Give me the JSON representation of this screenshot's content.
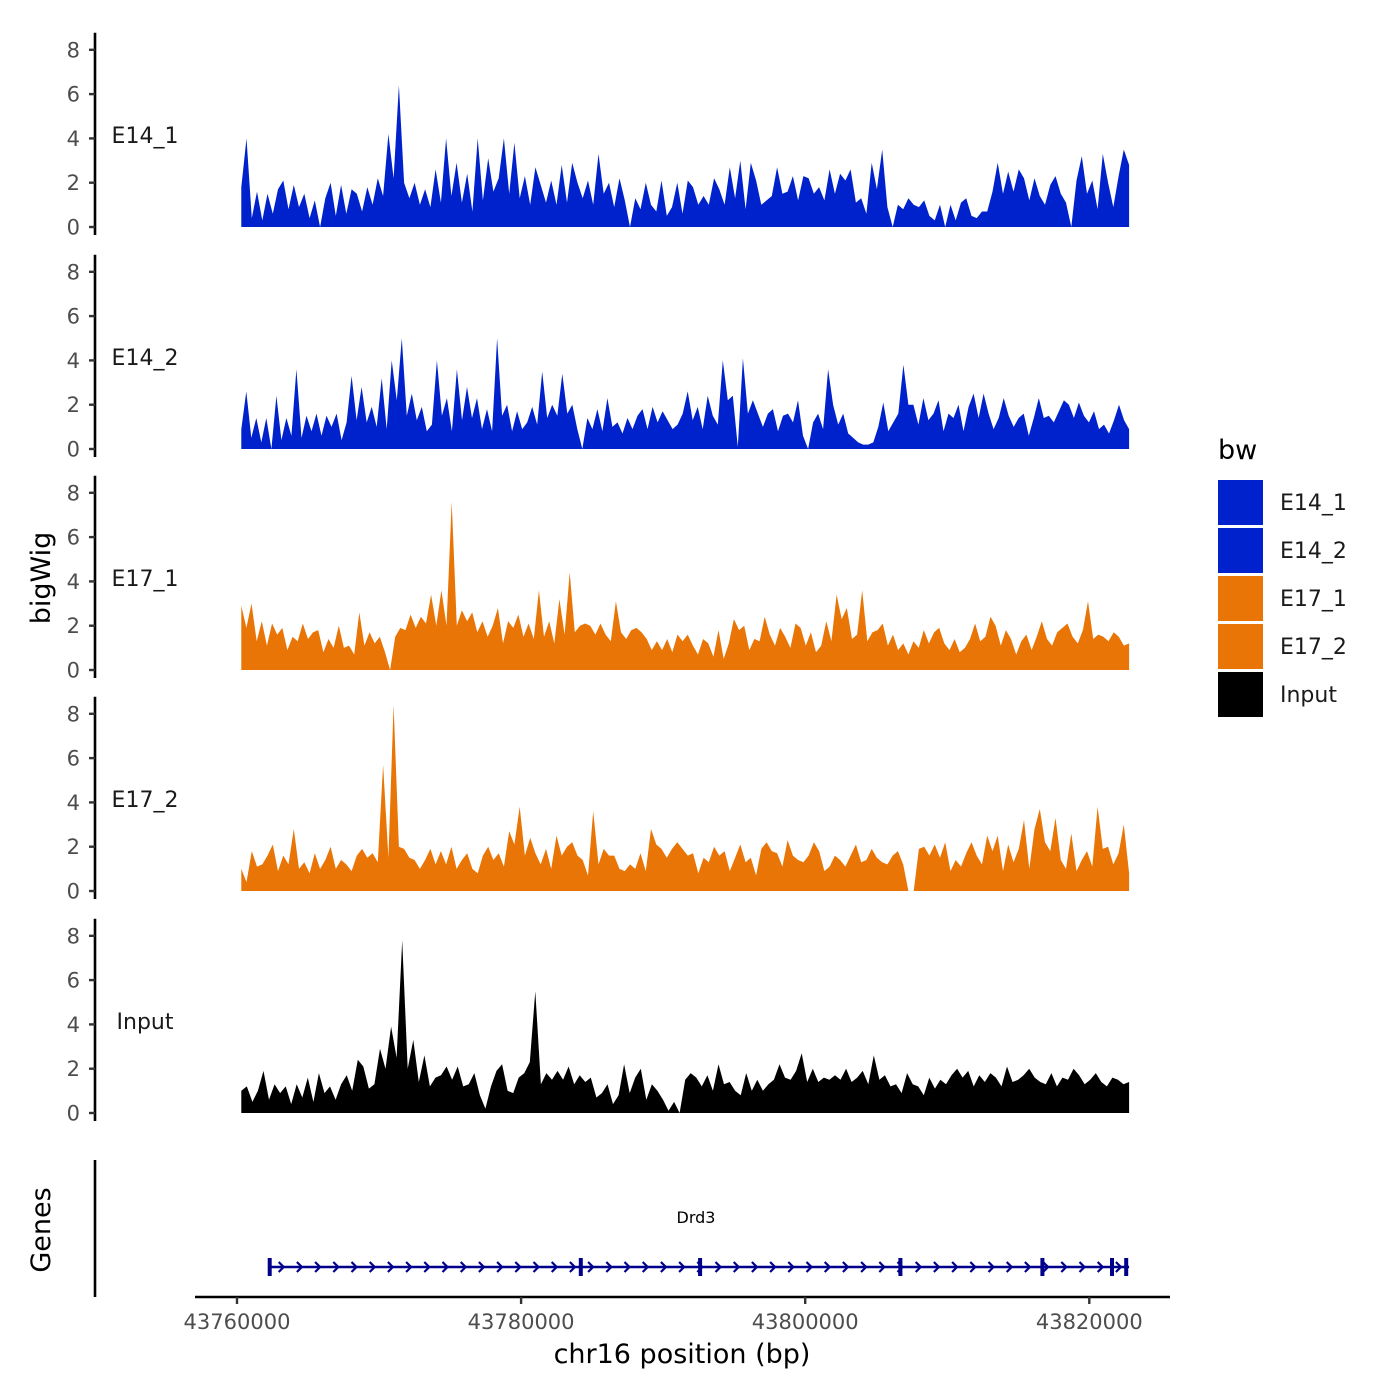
{
  "chart_data": {
    "type": "area",
    "title": "",
    "ylabel": "bigWig",
    "xlabel": "chr16 position (bp)",
    "ylim": [
      0,
      8.5
    ],
    "yticks": [
      "0",
      "2",
      "4",
      "6",
      "8"
    ],
    "xlim": [
      43760000,
      43823000
    ],
    "xticks": [
      43760000,
      43780000,
      43800000,
      43820000
    ],
    "xtick_labels": [
      "43760000",
      "43780000",
      "43800000",
      "43820000"
    ],
    "x_start": 43760300,
    "x_end": 43822800,
    "tracks": [
      {
        "name": "E14_1",
        "color": "#0022cc",
        "values": [
          1.8,
          4.0,
          0.4,
          1.6,
          0.3,
          1.5,
          0.6,
          1.7,
          2.1,
          0.8,
          1.9,
          0.9,
          1.5,
          0.4,
          1.2,
          0.0,
          1.3,
          2.0,
          0.5,
          1.9,
          0.6,
          1.7,
          1.5,
          0.7,
          1.8,
          1.0,
          2.2,
          1.4,
          4.2,
          2.2,
          6.4,
          2.0,
          1.3,
          2.0,
          1.0,
          1.7,
          0.9,
          2.6,
          1.1,
          4.0,
          1.4,
          2.9,
          1.1,
          2.4,
          0.7,
          4.0,
          1.2,
          3.1,
          1.6,
          2.2,
          4.0,
          1.5,
          3.8,
          1.3,
          2.3,
          1.0,
          2.7,
          1.9,
          1.1,
          2.1,
          1.0,
          2.8,
          1.1,
          2.9,
          2.0,
          1.3,
          2.1,
          1.0,
          3.3,
          1.5,
          2.0,
          0.9,
          2.2,
          1.2,
          0.0,
          1.3,
          0.8,
          2.0,
          1.0,
          0.7,
          2.1,
          0.5,
          0.9,
          2.0,
          0.6,
          2.1,
          1.8,
          1.0,
          1.4,
          1.0,
          2.2,
          1.7,
          1.0,
          2.7,
          1.3,
          3.0,
          0.8,
          2.9,
          2.1,
          1.0,
          1.2,
          1.4,
          2.7,
          1.5,
          1.6,
          2.3,
          1.2,
          2.3,
          2.2,
          1.5,
          1.8,
          1.2,
          2.6,
          1.5,
          2.4,
          2.1,
          2.6,
          1.1,
          1.3,
          0.6,
          2.9,
          1.7,
          3.5,
          0.9,
          0.0,
          1.0,
          0.8,
          1.3,
          1.0,
          0.9,
          1.2,
          0.5,
          0.3,
          1.0,
          0.0,
          1.0,
          0.3,
          1.1,
          1.3,
          0.5,
          0.4,
          0.7,
          0.7,
          1.6,
          2.9,
          1.5,
          2.5,
          1.6,
          2.6,
          2.2,
          1.2,
          2.2,
          1.4,
          1.0,
          1.9,
          2.3,
          1.5,
          1.1,
          0.0,
          2.1,
          3.2,
          1.5,
          2.1,
          0.8,
          3.3,
          2.0,
          0.9,
          2.3,
          3.5,
          2.8
        ]
      },
      {
        "name": "E14_2",
        "color": "#0022cc",
        "values": [
          0.9,
          2.6,
          0.5,
          1.4,
          0.3,
          1.4,
          0.0,
          2.4,
          0.4,
          1.4,
          0.6,
          3.6,
          0.5,
          1.5,
          0.8,
          1.6,
          0.6,
          1.5,
          1.0,
          1.6,
          0.4,
          1.2,
          3.3,
          1.3,
          2.8,
          1.2,
          1.9,
          1.0,
          3.2,
          0.9,
          4.0,
          2.2,
          5.0,
          1.5,
          2.5,
          1.3,
          1.9,
          0.8,
          1.1,
          4.0,
          1.5,
          2.3,
          0.8,
          3.6,
          1.3,
          2.8,
          1.4,
          2.3,
          0.9,
          1.8,
          0.8,
          5.0,
          1.5,
          2.0,
          0.8,
          1.7,
          0.9,
          1.2,
          1.9,
          1.1,
          3.5,
          1.4,
          2.0,
          1.5,
          3.4,
          1.6,
          2.0,
          0.9,
          0.0,
          1.4,
          0.9,
          1.8,
          0.8,
          2.3,
          1.0,
          1.2,
          0.7,
          1.4,
          0.9,
          1.5,
          1.8,
          0.9,
          1.9,
          1.2,
          1.7,
          1.3,
          0.9,
          1.1,
          1.6,
          2.6,
          1.3,
          1.9,
          0.9,
          2.4,
          1.5,
          1.1,
          4.0,
          2.2,
          2.4,
          0.1,
          4.1,
          1.6,
          2.2,
          1.6,
          1.0,
          1.6,
          1.8,
          0.8,
          1.5,
          1.6,
          1.2,
          2.2,
          0.6,
          0.0,
          1.2,
          1.6,
          0.9,
          3.6,
          2.0,
          1.1,
          1.6,
          0.7,
          0.5,
          0.3,
          0.2,
          0.2,
          0.3,
          1.0,
          2.1,
          0.8,
          1.2,
          1.6,
          3.8,
          2.0,
          2.0,
          1.1,
          2.3,
          1.3,
          1.6,
          2.2,
          0.8,
          1.6,
          1.4,
          2.0,
          0.8,
          1.9,
          2.5,
          1.4,
          2.5,
          1.6,
          0.9,
          1.4,
          2.3,
          1.5,
          1.0,
          1.4,
          1.6,
          0.6,
          1.4,
          2.3,
          1.4,
          1.5,
          1.2,
          1.7,
          2.2,
          2.0,
          1.4,
          2.1,
          1.5,
          1.2,
          1.7,
          0.9,
          1.1,
          0.7,
          1.3,
          2.0,
          1.3,
          0.9
        ]
      },
      {
        "name": "E17_1",
        "color": "#e87506",
        "values": [
          2.9,
          1.9,
          3.0,
          1.3,
          2.2,
          1.1,
          2.1,
          1.6,
          1.9,
          0.9,
          1.5,
          1.3,
          2.1,
          1.4,
          1.7,
          1.8,
          0.8,
          1.4,
          1.0,
          2.0,
          1.0,
          1.1,
          0.7,
          2.6,
          1.1,
          1.7,
          1.2,
          1.5,
          0.8,
          0.0,
          1.5,
          1.9,
          1.8,
          2.5,
          1.9,
          2.4,
          2.1,
          3.4,
          2.0,
          3.6,
          2.0,
          7.6,
          2.0,
          2.7,
          2.2,
          2.6,
          1.7,
          2.2,
          1.5,
          2.0,
          2.8,
          1.2,
          2.2,
          1.9,
          2.5,
          1.5,
          2.1,
          1.4,
          3.6,
          1.5,
          2.2,
          1.2,
          3.2,
          1.6,
          4.4,
          1.7,
          2.0,
          2.1,
          2.0,
          1.6,
          2.1,
          1.6,
          1.3,
          3.1,
          1.7,
          1.4,
          1.8,
          1.9,
          1.7,
          1.4,
          0.9,
          1.3,
          0.9,
          1.4,
          0.8,
          1.6,
          1.3,
          1.6,
          1.1,
          0.7,
          1.4,
          1.2,
          0.6,
          1.8,
          0.5,
          1.2,
          2.3,
          1.8,
          2.0,
          0.9,
          1.4,
          1.3,
          2.4,
          1.6,
          1.1,
          1.9,
          1.5,
          1.0,
          2.1,
          1.9,
          1.1,
          1.7,
          0.8,
          1.1,
          2.2,
          1.3,
          3.4,
          2.3,
          2.8,
          1.4,
          1.6,
          3.6,
          1.3,
          1.7,
          1.8,
          2.1,
          1.1,
          1.6,
          0.9,
          1.2,
          0.7,
          1.3,
          1.0,
          1.8,
          1.2,
          1.7,
          1.9,
          1.2,
          0.9,
          1.4,
          0.8,
          1.0,
          1.4,
          2.1,
          1.3,
          1.5,
          2.4,
          2.0,
          1.1,
          1.8,
          1.4,
          0.7,
          1.3,
          1.6,
          0.9,
          1.5,
          2.2,
          1.4,
          1.1,
          1.7,
          1.9,
          2.1,
          1.5,
          1.2,
          1.8,
          3.1,
          1.4,
          1.6,
          1.5,
          1.3,
          1.7,
          1.5,
          1.1,
          1.2
        ]
      },
      {
        "name": "E17_2",
        "color": "#e87506",
        "values": [
          1.0,
          0.4,
          1.8,
          1.1,
          1.2,
          1.6,
          2.1,
          0.9,
          1.6,
          1.2,
          2.8,
          1.0,
          1.3,
          0.8,
          1.7,
          1.0,
          1.4,
          2.0,
          1.0,
          1.4,
          1.2,
          0.9,
          1.6,
          1.9,
          1.5,
          1.7,
          1.3,
          5.7,
          1.5,
          8.4,
          2.0,
          1.9,
          1.5,
          1.4,
          1.0,
          1.4,
          1.9,
          1.2,
          1.8,
          1.2,
          2.0,
          1.0,
          1.4,
          1.7,
          1.0,
          0.8,
          1.6,
          2.0,
          1.4,
          1.7,
          1.1,
          2.7,
          2.1,
          3.8,
          1.6,
          2.4,
          1.7,
          1.2,
          1.9,
          1.0,
          2.5,
          1.6,
          2.0,
          2.2,
          1.6,
          1.4,
          0.7,
          3.6,
          1.2,
          1.9,
          1.6,
          1.6,
          1.0,
          0.9,
          1.2,
          1.0,
          1.7,
          0.9,
          2.8,
          2.1,
          1.9,
          1.5,
          1.9,
          2.2,
          1.9,
          1.6,
          1.7,
          0.8,
          1.5,
          1.3,
          2.0,
          1.6,
          1.8,
          0.9,
          1.5,
          2.1,
          1.3,
          1.5,
          0.7,
          1.9,
          2.2,
          1.8,
          1.7,
          1.1,
          2.3,
          1.6,
          1.4,
          1.3,
          1.6,
          2.2,
          1.8,
          0.9,
          1.1,
          1.6,
          1.4,
          1.1,
          1.6,
          2.1,
          1.3,
          1.4,
          1.9,
          1.5,
          1.3,
          1.2,
          1.6,
          1.8,
          1.2,
          0.0,
          0.0,
          1.9,
          2.0,
          1.6,
          2.1,
          1.5,
          2.2,
          0.9,
          1.4,
          1.1,
          1.7,
          2.2,
          1.6,
          1.2,
          2.5,
          1.8,
          2.5,
          0.9,
          2.1,
          1.3,
          1.9,
          3.2,
          1.0,
          2.8,
          3.7,
          2.2,
          1.8,
          3.3,
          1.4,
          1.0,
          2.6,
          0.9,
          1.4,
          1.8,
          1.1,
          3.8,
          1.9,
          2.0,
          1.2,
          1.7,
          3.0,
          0.8
        ]
      },
      {
        "name": "Input",
        "color": "#000000",
        "values": [
          1.0,
          1.2,
          0.5,
          1.0,
          1.9,
          0.6,
          1.3,
          0.9,
          1.2,
          0.4,
          1.3,
          0.7,
          1.6,
          0.5,
          1.8,
          0.9,
          1.2,
          0.6,
          1.3,
          1.7,
          1.0,
          2.4,
          2.1,
          1.1,
          1.3,
          2.9,
          2.0,
          3.9,
          2.5,
          7.8,
          2.0,
          3.3,
          1.4,
          2.6,
          1.2,
          1.6,
          1.7,
          2.1,
          1.5,
          2.1,
          1.2,
          1.3,
          1.8,
          0.8,
          0.2,
          1.2,
          1.9,
          2.2,
          1.0,
          0.9,
          1.6,
          1.8,
          2.3,
          5.5,
          1.3,
          1.8,
          1.5,
          1.9,
          1.5,
          2.1,
          1.3,
          1.7,
          1.4,
          1.6,
          0.7,
          0.9,
          1.3,
          0.4,
          0.8,
          2.2,
          0.9,
          1.6,
          2.0,
          0.6,
          1.3,
          1.0,
          0.6,
          0.1,
          0.5,
          0.0,
          1.5,
          1.8,
          1.6,
          1.2,
          1.7,
          1.0,
          2.2,
          1.3,
          1.4,
          1.0,
          0.8,
          1.8,
          1.0,
          1.5,
          1.0,
          1.3,
          1.5,
          2.2,
          1.6,
          1.5,
          1.9,
          2.7,
          1.4,
          2.0,
          1.4,
          1.6,
          1.5,
          1.7,
          1.5,
          2.0,
          1.4,
          1.6,
          1.9,
          1.3,
          2.6,
          1.5,
          1.7,
          1.2,
          1.3,
          0.9,
          1.8,
          1.3,
          1.2,
          0.8,
          1.6,
          1.1,
          1.5,
          1.3,
          1.7,
          2.0,
          1.6,
          1.9,
          1.2,
          1.7,
          1.4,
          1.8,
          1.6,
          1.2,
          2.1,
          1.4,
          1.5,
          1.7,
          2.0,
          1.6,
          1.4,
          1.3,
          1.8,
          1.2,
          1.6,
          1.5,
          2.0,
          1.7,
          1.3,
          1.5,
          1.8,
          1.4,
          1.2,
          1.6,
          1.5,
          1.3,
          1.4
        ]
      }
    ],
    "genes_panel": {
      "ylabel": "Genes",
      "gene": {
        "name": "Drd3",
        "start": 43762300,
        "end": 43822800,
        "strand": "+",
        "color": "#00008b",
        "exons": [
          43762300,
          43784200,
          43792600,
          43806700,
          43816700,
          43821600,
          43822600
        ]
      }
    },
    "legend": {
      "title": "bw",
      "position": "right",
      "entries": [
        {
          "label": "E14_1",
          "color": "#0022cc"
        },
        {
          "label": "E14_2",
          "color": "#0022cc"
        },
        {
          "label": "E17_1",
          "color": "#e87506"
        },
        {
          "label": "E17_2",
          "color": "#e87506"
        },
        {
          "label": "Input",
          "color": "#000000"
        }
      ]
    }
  }
}
